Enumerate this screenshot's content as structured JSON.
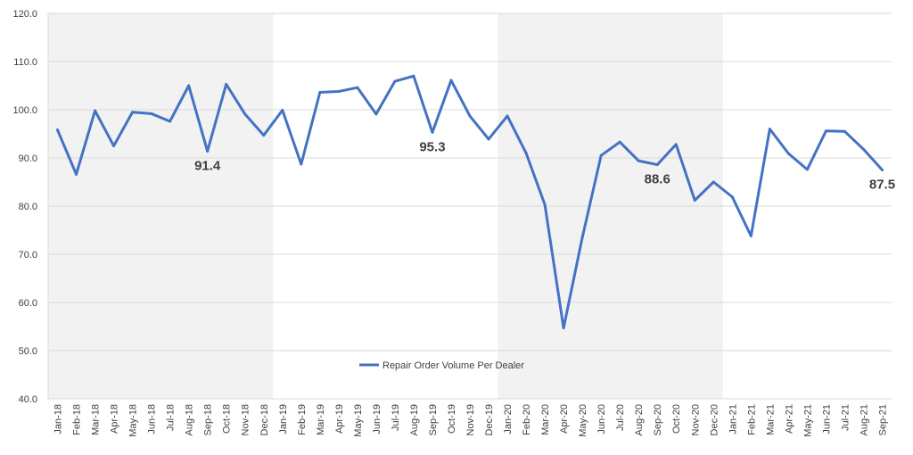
{
  "chart_data": {
    "type": "line",
    "title": "",
    "xlabel": "",
    "ylabel": "",
    "ylim": [
      40,
      120
    ],
    "y_ticks": [
      "40.0",
      "50.0",
      "60.0",
      "70.0",
      "80.0",
      "90.0",
      "100.0",
      "110.0",
      "120.0"
    ],
    "grid": true,
    "legend_position": "bottom-center",
    "shaded_bands": [
      {
        "from": "Jan-18",
        "to": "Dec-18",
        "color": "#f2f2f2"
      },
      {
        "from": "Jan-20",
        "to": "Dec-20",
        "color": "#f2f2f2"
      }
    ],
    "categories": [
      "Jan-18",
      "Feb-18",
      "Mar-18",
      "Apr-18",
      "May-18",
      "Jun-18",
      "Jul-18",
      "Aug-18",
      "Sep-18",
      "Oct-18",
      "Nov-18",
      "Dec-18",
      "Jan-19",
      "Feb-19",
      "Mar-19",
      "Apr-19",
      "May-19",
      "Jun-19",
      "Jul-19",
      "Aug-19",
      "Sep-19",
      "Oct-19",
      "Nov-19",
      "Dec-19",
      "Jan-20",
      "Feb-20",
      "Mar-20",
      "Apr-20",
      "May-20",
      "Jun-20",
      "Jul-20",
      "Aug-20",
      "Sep-20",
      "Oct-20",
      "Nov-20",
      "Dec-20",
      "Jan-21",
      "Feb-21",
      "Mar-21",
      "Apr-21",
      "May-21",
      "Jun-21",
      "Jul-21",
      "Aug-21",
      "Sep-21"
    ],
    "series": [
      {
        "name": "Repair Order Volume Per Dealer",
        "color": "#4472c4",
        "values": [
          95.8,
          86.6,
          99.8,
          92.5,
          99.5,
          99.2,
          97.6,
          105.0,
          91.4,
          105.3,
          99.1,
          94.7,
          99.9,
          88.7,
          103.6,
          103.8,
          104.6,
          99.1,
          105.9,
          107.0,
          95.3,
          106.1,
          98.7,
          93.9,
          98.7,
          91.0,
          80.3,
          54.7,
          73.5,
          90.5,
          93.3,
          89.4,
          88.6,
          92.8,
          81.2,
          85.0,
          81.9,
          73.8,
          96.0,
          90.9,
          87.6,
          95.6,
          95.5,
          91.8,
          87.5
        ]
      }
    ],
    "data_labels": [
      {
        "category": "Sep-18",
        "text": "91.4"
      },
      {
        "category": "Sep-19",
        "text": "95.3"
      },
      {
        "category": "Sep-20",
        "text": "88.6"
      },
      {
        "category": "Sep-21",
        "text": "87.5"
      }
    ]
  }
}
